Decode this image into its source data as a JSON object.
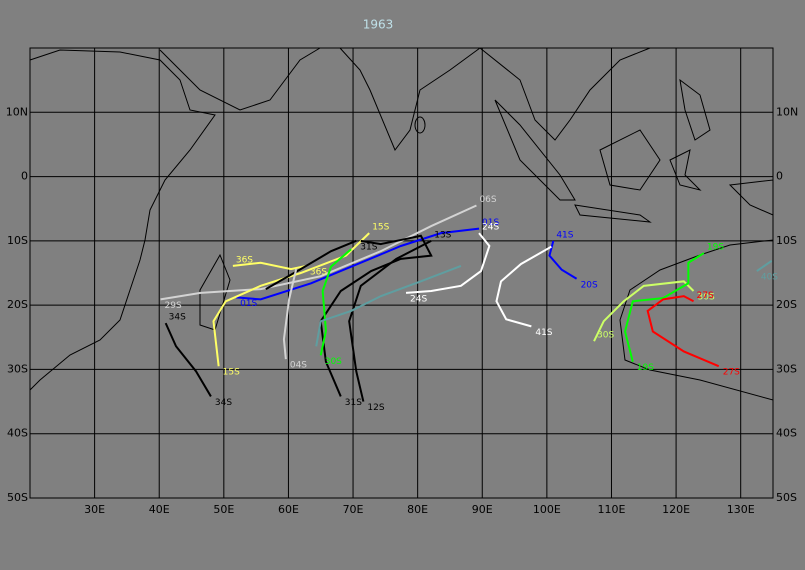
{
  "title": "1963",
  "lon_ticks": [
    {
      "value": 30,
      "label": "30E"
    },
    {
      "value": 40,
      "label": "40E"
    },
    {
      "value": 50,
      "label": "50E"
    },
    {
      "value": 60,
      "label": "60E"
    },
    {
      "value": 70,
      "label": "70E"
    },
    {
      "value": 80,
      "label": "80E"
    },
    {
      "value": 90,
      "label": "90E"
    },
    {
      "value": 100,
      "label": "100E"
    },
    {
      "value": 110,
      "label": "110E"
    },
    {
      "value": 120,
      "label": "120E"
    },
    {
      "value": 130,
      "label": "130E"
    }
  ],
  "lat_ticks": [
    {
      "value": 10,
      "label": "10N"
    },
    0,
    {
      "value": -10,
      "label": "10S"
    },
    {
      "value": -20,
      "label": "20S"
    },
    {
      "value": -30,
      "label": "30S"
    },
    {
      "value": -40,
      "label": "40S"
    },
    {
      "value": -50,
      "label": "50S"
    }
  ],
  "lonlim": [
    20,
    135
  ],
  "latlim": [
    -50,
    20
  ],
  "tracks": [
    {
      "color": "#0000ff",
      "start_label": "01S",
      "end_label": "01S",
      "lon": [
        89.5,
        83.6,
        77.4,
        71.2,
        63.5,
        55.7,
        51.9
      ],
      "lat": [
        -8.1,
        -8.8,
        -10.8,
        -13.4,
        -16.6,
        -19.1,
        -18.8
      ]
    },
    {
      "color": "#0000ff",
      "start_label": "41S",
      "end_label": "20S",
      "lon": [
        101.0,
        100.4,
        102.3,
        104.6
      ],
      "lat": [
        -10,
        -12.3,
        -14.5,
        -15.9
      ]
    },
    {
      "color": "#ffffff",
      "end_label": "41S",
      "lon": [
        100.7,
        96.0,
        92.9,
        92.2,
        93.7,
        97.6
      ],
      "lat": [
        -10.9,
        -13.6,
        -16.3,
        -19.4,
        -22.2,
        -23.3
      ]
    },
    {
      "color": "#ffffff",
      "start_label": "24S",
      "end_label": "24S",
      "lon": [
        89.5,
        91.1,
        89.8,
        86.7,
        82.1,
        78.2
      ],
      "lat": [
        -8.8,
        -10.8,
        -14.7,
        -17,
        -17.8,
        -18.1
      ]
    },
    {
      "color": "#d3d3d3",
      "start_label": "06S",
      "end_label": "29S",
      "lon": [
        89.1,
        82.1,
        74.3,
        65.0,
        55.7,
        46.4,
        40.2
      ],
      "lat": [
        -4.5,
        -7.7,
        -11.6,
        -15.5,
        -17.5,
        -18.1,
        -19.1
      ]
    },
    {
      "color": "#000000",
      "start_label": "34S",
      "end_label": "34S",
      "lon": [
        41.0,
        42.6,
        45.7,
        48.0
      ],
      "lat": [
        -22.8,
        -26.4,
        -30.3,
        -34.2
      ]
    },
    {
      "color": "#ffff66",
      "start_label": "15S",
      "end_label": "15S",
      "lon": [
        72.5,
        68.9,
        61.9,
        55.7,
        50.3,
        48.4,
        49.2
      ],
      "lat": [
        -8.8,
        -12.3,
        -15,
        -17,
        -19.4,
        -22.5,
        -29.5
      ]
    },
    {
      "color": "#ffff66",
      "start_label": "36S",
      "end_label": "36S",
      "lon": [
        51.4,
        55.7,
        60.4,
        62.7
      ],
      "lat": [
        -13.9,
        -13.4,
        -14.4,
        -13.9
      ]
    },
    {
      "color": "#000000",
      "end_label": "31S",
      "lon": [
        71.2,
        74.3,
        78.2,
        80.5,
        82.1,
        77.4,
        72.8,
        68.1,
        65.0,
        65.8,
        68.1
      ],
      "lat": [
        -10,
        -10.5,
        -9.7,
        -9.2,
        -12.3,
        -12.8,
        -14.7,
        -17.8,
        -22.5,
        -28.8,
        -34.2
      ]
    },
    {
      "color": "#000000",
      "start_label": "13S",
      "end_label": "12S",
      "lon": [
        82.1,
        76.7,
        71.2,
        69.4,
        70.5,
        71.6
      ],
      "lat": [
        -10,
        -12.8,
        -17,
        -22.5,
        -30.3,
        -35
      ]
    },
    {
      "color": "#000000",
      "end_label": "31S",
      "lon": [
        56.5,
        61.9,
        66.6,
        70.5
      ],
      "lat": [
        -17.5,
        -14.4,
        -11.6,
        -10
      ]
    },
    {
      "color": "#00ff00",
      "end_label": "30S",
      "lon": [
        69.7,
        66.6,
        65.3,
        65.8,
        65.0
      ],
      "lat": [
        -11.3,
        -14,
        -17.8,
        -24,
        -27.8
      ]
    },
    {
      "color": "#5f9ea0",
      "lon": [
        86.7,
        80.5,
        74.3,
        69.7,
        65.0,
        64.3
      ],
      "lat": [
        -13.9,
        -16.3,
        -18.6,
        -20.9,
        -22.5,
        -26.4
      ]
    },
    {
      "color": "#d3d3d3",
      "end_label": "04S",
      "lon": [
        61.2,
        60.1,
        59.3,
        59.6
      ],
      "lat": [
        -14.4,
        -19.1,
        -25.3,
        -28.4
      ]
    },
    {
      "color": "#ccff66",
      "start_label": "30S",
      "end_label": "30S",
      "lon": [
        107.3,
        108.8,
        111.9,
        115,
        121.2,
        122.7
      ],
      "lat": [
        -25.6,
        -22.5,
        -19.4,
        -17,
        -16.3,
        -17.8
      ]
    },
    {
      "color": "#00ff00",
      "start_label": "19S",
      "end_label": "19S",
      "lon": [
        124.3,
        121.9,
        121.9,
        118,
        113.3,
        112.1,
        113.3
      ],
      "lat": [
        -11.9,
        -13.4,
        -16.6,
        -18.9,
        -19.4,
        -24.1,
        -28.8
      ]
    },
    {
      "color": "#ff0000",
      "start_label": "27S",
      "end_label": "27S",
      "lon": [
        122.7,
        121.2,
        118,
        115.6,
        116.4,
        121.2,
        126.6
      ],
      "lat": [
        -19.4,
        -18.6,
        -19.1,
        -20.9,
        -24.1,
        -27.2,
        -29.5
      ]
    },
    {
      "color": "#5f9ea0",
      "end_label": "40S",
      "lon": [
        134.8,
        132.5
      ],
      "lat": [
        -13.1,
        -14.7
      ]
    }
  ]
}
